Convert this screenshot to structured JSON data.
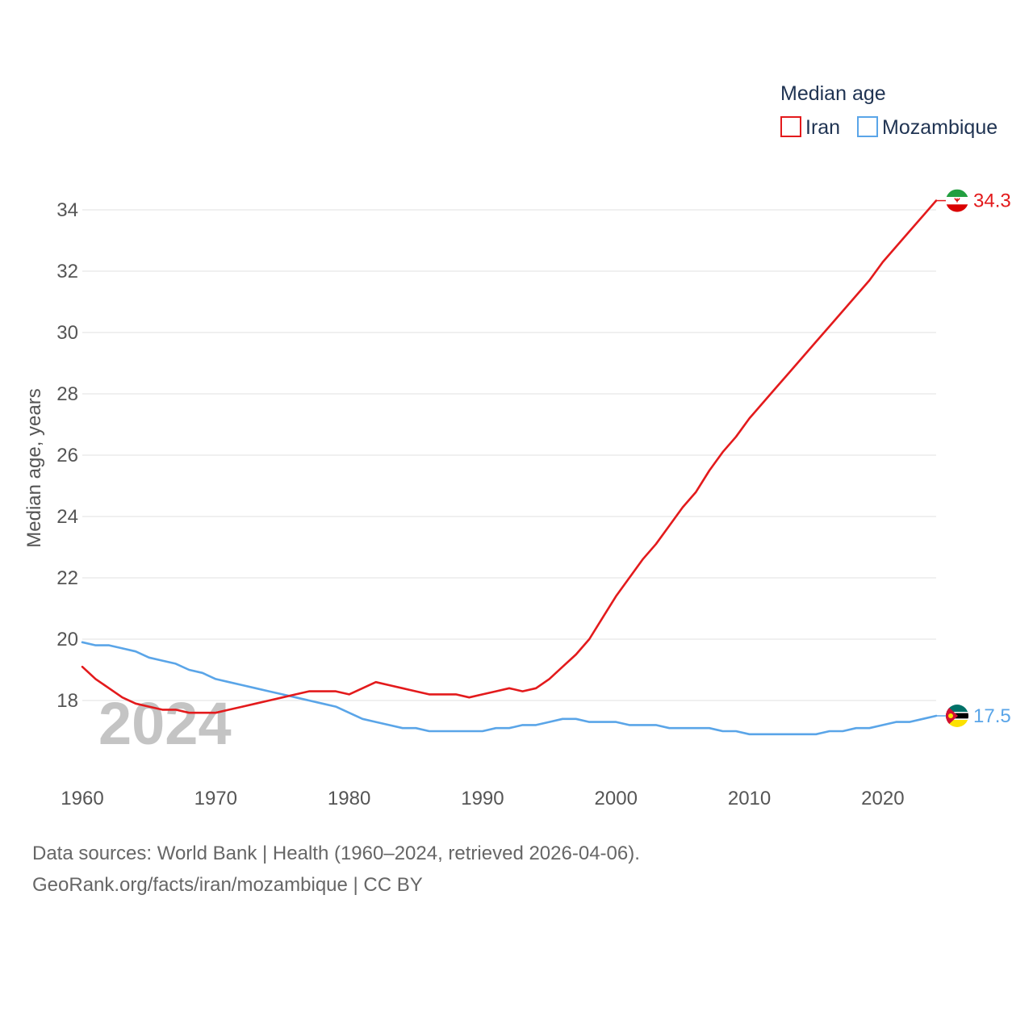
{
  "chart_data": {
    "type": "line",
    "ylabel": "Median age, years",
    "legend_title": "Median age",
    "legend_position": "top-right",
    "watermark_year": "2024",
    "ylim": [
      15.5,
      35
    ],
    "xlim": [
      1960,
      2024
    ],
    "yticks": [
      18,
      20,
      22,
      24,
      26,
      28,
      30,
      32,
      34
    ],
    "xticks": [
      1960,
      1970,
      1980,
      1990,
      2000,
      2010,
      2020
    ],
    "grid": true,
    "x": [
      1960,
      1961,
      1962,
      1963,
      1964,
      1965,
      1966,
      1967,
      1968,
      1969,
      1970,
      1971,
      1972,
      1973,
      1974,
      1975,
      1976,
      1977,
      1978,
      1979,
      1980,
      1981,
      1982,
      1983,
      1984,
      1985,
      1986,
      1987,
      1988,
      1989,
      1990,
      1991,
      1992,
      1993,
      1994,
      1995,
      1996,
      1997,
      1998,
      1999,
      2000,
      2001,
      2002,
      2003,
      2004,
      2005,
      2006,
      2007,
      2008,
      2009,
      2010,
      2011,
      2012,
      2013,
      2014,
      2015,
      2016,
      2017,
      2018,
      2019,
      2020,
      2021,
      2022,
      2023,
      2024
    ],
    "series": [
      {
        "name": "Iran",
        "color": "#e31a1c",
        "end_label": "34.3",
        "flag": "iran",
        "values": [
          19.1,
          18.7,
          18.4,
          18.1,
          17.9,
          17.8,
          17.7,
          17.7,
          17.6,
          17.6,
          17.6,
          17.7,
          17.8,
          17.9,
          18.0,
          18.1,
          18.2,
          18.3,
          18.3,
          18.3,
          18.2,
          18.4,
          18.6,
          18.5,
          18.4,
          18.3,
          18.2,
          18.2,
          18.2,
          18.1,
          18.2,
          18.3,
          18.4,
          18.3,
          18.4,
          18.7,
          19.1,
          19.5,
          20.0,
          20.7,
          21.4,
          22.0,
          22.6,
          23.1,
          23.7,
          24.3,
          24.8,
          25.5,
          26.1,
          26.6,
          27.2,
          27.7,
          28.2,
          28.7,
          29.2,
          29.7,
          30.2,
          30.7,
          31.2,
          31.7,
          32.3,
          32.8,
          33.3,
          33.8,
          34.3
        ]
      },
      {
        "name": "Mozambique",
        "color": "#5aa5e8",
        "end_label": "17.5",
        "flag": "mozambique",
        "values": [
          19.9,
          19.8,
          19.8,
          19.7,
          19.6,
          19.4,
          19.3,
          19.2,
          19.0,
          18.9,
          18.7,
          18.6,
          18.5,
          18.4,
          18.3,
          18.2,
          18.1,
          18.0,
          17.9,
          17.8,
          17.6,
          17.4,
          17.3,
          17.2,
          17.1,
          17.1,
          17.0,
          17.0,
          17.0,
          17.0,
          17.0,
          17.1,
          17.1,
          17.2,
          17.2,
          17.3,
          17.4,
          17.4,
          17.3,
          17.3,
          17.3,
          17.2,
          17.2,
          17.2,
          17.1,
          17.1,
          17.1,
          17.1,
          17.0,
          17.0,
          16.9,
          16.9,
          16.9,
          16.9,
          16.9,
          16.9,
          17.0,
          17.0,
          17.1,
          17.1,
          17.2,
          17.3,
          17.3,
          17.4,
          17.5
        ]
      }
    ]
  },
  "source": {
    "line1": "Data sources: World Bank | Health (1960–2024, retrieved 2026-04-06).",
    "line2": "GeoRank.org/facts/iran/mozambique | CC BY"
  }
}
